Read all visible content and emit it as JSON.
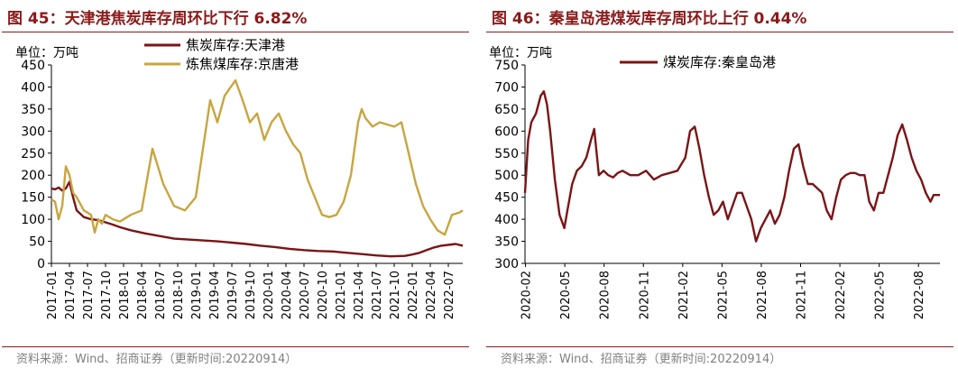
{
  "chart_data": [
    {
      "type": "line",
      "title": "图 45：天津港焦炭库存周环比下行 6.82%",
      "unit_label": "单位：万吨",
      "source": "资料来源：Wind、招商证券（更新时间:20220914）",
      "ylim": [
        0,
        450
      ],
      "yticks": [
        "0",
        "50",
        "100",
        "150",
        "200",
        "250",
        "300",
        "350",
        "400",
        "450"
      ],
      "xlim": [
        2017.0,
        2022.7
      ],
      "xticks": [
        "2017-01",
        "2017-04",
        "2017-07",
        "2017-10",
        "2018-01",
        "2018-04",
        "2018-07",
        "2018-10",
        "2019-01",
        "2019-04",
        "2019-07",
        "2019-10",
        "2020-01",
        "2020-04",
        "2020-07",
        "2020-10",
        "2021-01",
        "2021-04",
        "2021-07",
        "2021-10",
        "2022-01",
        "2022-04",
        "2022-07"
      ],
      "legend_position": "top",
      "series": [
        {
          "name": "焦炭库存:天津港",
          "color": "#7b1416",
          "x": [
            2017.0,
            2017.05,
            2017.1,
            2017.15,
            2017.2,
            2017.25,
            2017.3,
            2017.35,
            2017.45,
            2017.55,
            2017.65,
            2017.75,
            2017.85,
            2017.95,
            2018.1,
            2018.3,
            2018.5,
            2018.7,
            2018.9,
            2019.1,
            2019.3,
            2019.5,
            2019.7,
            2019.9,
            2020.1,
            2020.3,
            2020.5,
            2020.7,
            2020.9,
            2021.1,
            2021.3,
            2021.5,
            2021.7,
            2021.9,
            2022.0,
            2022.1,
            2022.2,
            2022.3,
            2022.4,
            2022.5,
            2022.6,
            2022.7
          ],
          "y": [
            170,
            168,
            172,
            165,
            170,
            185,
            150,
            120,
            105,
            100,
            98,
            93,
            88,
            82,
            75,
            68,
            62,
            56,
            54,
            52,
            50,
            47,
            44,
            40,
            37,
            33,
            30,
            28,
            27,
            24,
            21,
            18,
            16,
            17,
            20,
            24,
            30,
            36,
            40,
            42,
            44,
            40
          ]
        },
        {
          "name": "炼焦煤库存:京唐港",
          "color": "#c8a540",
          "x": [
            2017.0,
            2017.05,
            2017.1,
            2017.15,
            2017.2,
            2017.25,
            2017.3,
            2017.35,
            2017.45,
            2017.55,
            2017.6,
            2017.65,
            2017.7,
            2017.75,
            2017.85,
            2017.95,
            2018.1,
            2018.25,
            2018.4,
            2018.55,
            2018.7,
            2018.85,
            2019.0,
            2019.1,
            2019.2,
            2019.3,
            2019.4,
            2019.55,
            2019.65,
            2019.75,
            2019.85,
            2019.95,
            2020.05,
            2020.15,
            2020.25,
            2020.35,
            2020.45,
            2020.55,
            2020.65,
            2020.75,
            2020.85,
            2020.95,
            2021.05,
            2021.15,
            2021.25,
            2021.3,
            2021.35,
            2021.45,
            2021.55,
            2021.65,
            2021.75,
            2021.85,
            2021.95,
            2022.05,
            2022.15,
            2022.25,
            2022.35,
            2022.45,
            2022.55,
            2022.65,
            2022.7
          ],
          "y": [
            145,
            140,
            100,
            130,
            220,
            200,
            160,
            150,
            120,
            110,
            70,
            100,
            90,
            110,
            100,
            95,
            110,
            120,
            260,
            180,
            130,
            120,
            150,
            260,
            370,
            320,
            380,
            415,
            370,
            320,
            340,
            280,
            320,
            340,
            300,
            270,
            250,
            190,
            150,
            110,
            105,
            110,
            140,
            200,
            320,
            350,
            330,
            310,
            320,
            315,
            310,
            320,
            250,
            180,
            130,
            100,
            75,
            65,
            110,
            115,
            120
          ]
        }
      ]
    },
    {
      "type": "line",
      "title": "图 46：秦皇岛港煤炭库存周环比上行 0.44%",
      "unit_label": "单位：万吨",
      "source": "资料来源：Wind、招商证券（更新时间:20220914）",
      "ylim": [
        300,
        750
      ],
      "yticks": [
        "300",
        "350",
        "400",
        "450",
        "500",
        "550",
        "600",
        "650",
        "700",
        "750"
      ],
      "xlim": [
        2020.08,
        2022.72
      ],
      "xticks": [
        "2020-02",
        "2020-05",
        "2020-08",
        "2020-11",
        "2021-02",
        "2021-05",
        "2021-08",
        "2021-11",
        "2022-02",
        "2022-05",
        "2022-08"
      ],
      "legend_position": "top",
      "series": [
        {
          "name": "煤炭库存:秦皇岛港",
          "color": "#7b1416",
          "x": [
            2020.08,
            2020.1,
            2020.12,
            2020.15,
            2020.18,
            2020.2,
            2020.22,
            2020.24,
            2020.27,
            2020.3,
            2020.33,
            2020.35,
            2020.38,
            2020.41,
            2020.44,
            2020.47,
            2020.5,
            2020.52,
            2020.55,
            2020.58,
            2020.61,
            2020.64,
            2020.67,
            2020.7,
            2020.75,
            2020.8,
            2020.85,
            2020.9,
            2020.95,
            2021.0,
            2021.05,
            2021.1,
            2021.13,
            2021.16,
            2021.19,
            2021.22,
            2021.25,
            2021.28,
            2021.31,
            2021.34,
            2021.37,
            2021.4,
            2021.43,
            2021.46,
            2021.49,
            2021.52,
            2021.55,
            2021.58,
            2021.61,
            2021.64,
            2021.67,
            2021.7,
            2021.73,
            2021.76,
            2021.79,
            2021.82,
            2021.85,
            2021.88,
            2021.91,
            2021.94,
            2021.97,
            2022.0,
            2022.03,
            2022.06,
            2022.09,
            2022.12,
            2022.15,
            2022.18,
            2022.21,
            2022.24,
            2022.27,
            2022.3,
            2022.33,
            2022.36,
            2022.39,
            2022.42,
            2022.45,
            2022.48,
            2022.51,
            2022.54,
            2022.57,
            2022.6,
            2022.63,
            2022.66,
            2022.68,
            2022.7,
            2022.72
          ],
          "y": [
            460,
            580,
            620,
            640,
            680,
            690,
            660,
            600,
            490,
            410,
            380,
            420,
            480,
            510,
            520,
            540,
            580,
            605,
            500,
            510,
            500,
            495,
            505,
            510,
            500,
            500,
            510,
            490,
            500,
            505,
            510,
            540,
            600,
            610,
            560,
            500,
            450,
            410,
            420,
            440,
            400,
            430,
            460,
            460,
            430,
            400,
            350,
            380,
            400,
            420,
            390,
            410,
            450,
            510,
            560,
            570,
            520,
            480,
            480,
            470,
            460,
            420,
            400,
            450,
            490,
            500,
            505,
            505,
            500,
            500,
            440,
            420,
            460,
            460,
            500,
            540,
            590,
            615,
            580,
            540,
            510,
            490,
            460,
            440,
            455,
            455,
            455
          ]
        }
      ]
    }
  ]
}
